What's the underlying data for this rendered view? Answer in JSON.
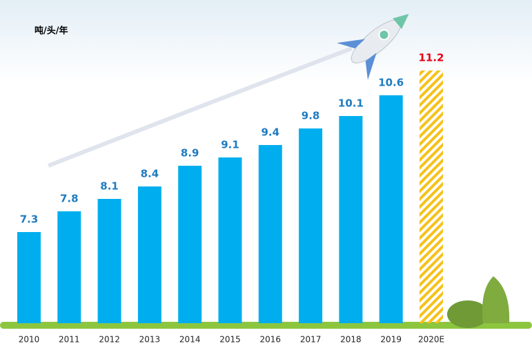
{
  "chart_data": {
    "type": "bar",
    "y_label": "吨/头/年",
    "categories": [
      "2010",
      "2011",
      "2012",
      "2013",
      "2014",
      "2015",
      "2016",
      "2017",
      "2018",
      "2019",
      "2020E"
    ],
    "values": [
      7.3,
      7.8,
      8.1,
      8.4,
      8.9,
      9.1,
      9.4,
      9.8,
      10.1,
      10.6,
      11.2
    ],
    "colors": [
      "#00aeef",
      "#00aeef",
      "#00aeef",
      "#00aeef",
      "#00aeef",
      "#00aeef",
      "#00aeef",
      "#00aeef",
      "#00aeef",
      "#00aeef",
      "#f5c21a"
    ],
    "hatched": [
      false,
      false,
      false,
      false,
      false,
      false,
      false,
      false,
      false,
      false,
      true
    ],
    "label_colors": [
      "#1f7bc0",
      "#1f7bc0",
      "#1f7bc0",
      "#1f7bc0",
      "#1f7bc0",
      "#1f7bc0",
      "#1f7bc0",
      "#1f7bc0",
      "#1f7bc0",
      "#1f7bc0",
      "#e60012"
    ],
    "ylim": [
      5.1,
      12.5
    ]
  }
}
